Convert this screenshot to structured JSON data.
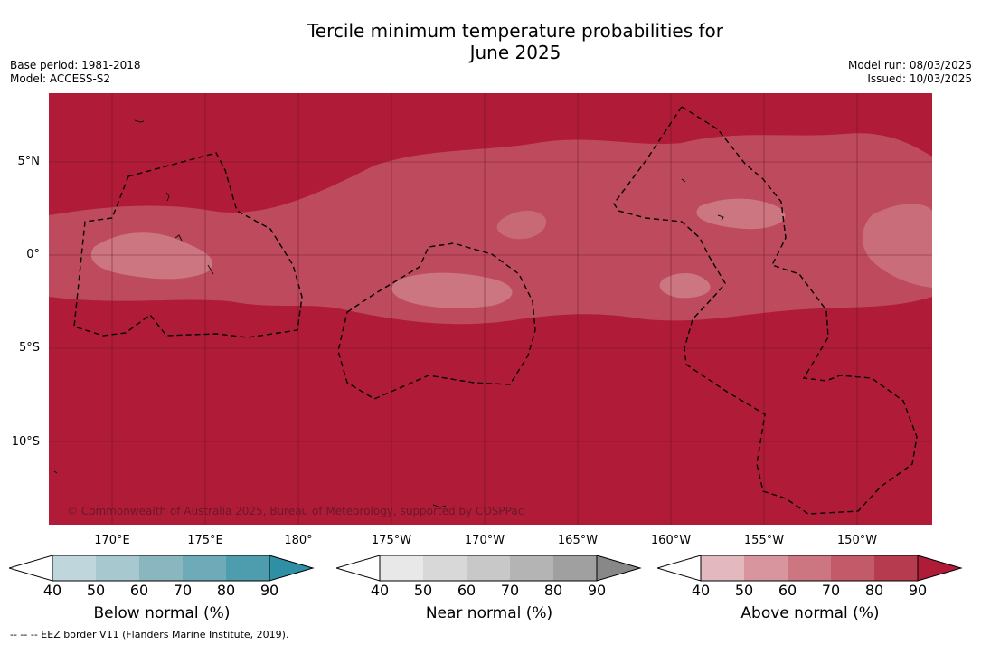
{
  "title_line1": "Tercile minimum temperature probabilities for",
  "title_line2": "June 2025",
  "base_period": "Base period: 1981-2018",
  "model": "Model: ACCESS-S2",
  "model_run": "Model run: 08/03/2025",
  "issued": "Issued: 10/03/2025",
  "lat_labels": [
    "5°N",
    "0°",
    "5°S",
    "10°S"
  ],
  "lon_labels": [
    "170°E",
    "175°E",
    "180°",
    "175°W",
    "170°W",
    "165°W",
    "160°W",
    "155°W",
    "150°W"
  ],
  "copyright": "© Commonwealth of Australia 2025, Bureau of Meteorology, supported by COSPPac",
  "colorbars": [
    {
      "title": "Below normal (%)",
      "ticks": [
        "40",
        "50",
        "60",
        "70",
        "80",
        "90"
      ],
      "colors": [
        "#bfd6dd",
        "#a7c8cf",
        "#8ab6c0",
        "#6eaab7",
        "#4d9dae",
        "#2f8fa5"
      ]
    },
    {
      "title": "Near normal (%)",
      "ticks": [
        "40",
        "50",
        "60",
        "70",
        "80",
        "90"
      ],
      "colors": [
        "#e8e8e8",
        "#d8d8d8",
        "#c8c8c8",
        "#b4b4b4",
        "#a0a0a0",
        "#888888"
      ]
    },
    {
      "title": "Above normal (%)",
      "ticks": [
        "40",
        "50",
        "60",
        "70",
        "80",
        "90"
      ],
      "colors": [
        "#e4b8bf",
        "#d8959d",
        "#cc7682",
        "#c35a69",
        "#b73b4e",
        "#b01c38"
      ]
    }
  ],
  "footnote": "-- -- -- EEZ border V11 (Flanders Marine Institute, 2019).",
  "colors": {
    "base": "#b01c38",
    "band80": "#b73b4e",
    "band70": "#c35a69",
    "band60": "#cc7682"
  }
}
